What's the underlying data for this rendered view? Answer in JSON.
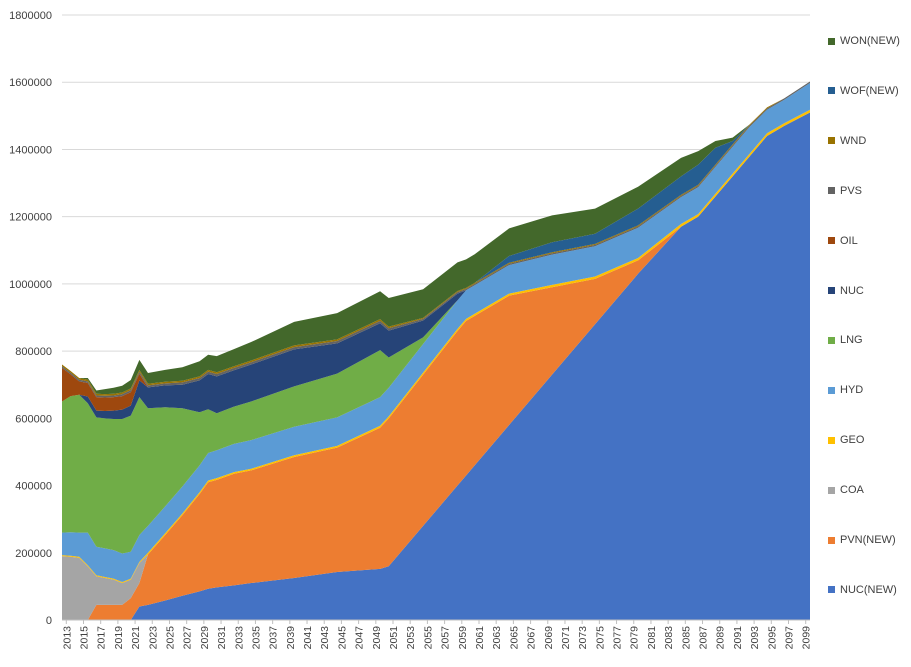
{
  "chart_data": {
    "type": "area",
    "stacked": true,
    "title": "",
    "xlabel": "",
    "ylabel": "",
    "ylim": [
      0,
      1800000
    ],
    "yticks": [
      0,
      200000,
      400000,
      600000,
      800000,
      1000000,
      1200000,
      1400000,
      1600000,
      1800000
    ],
    "x_tick_labels": [
      "2013",
      "2015",
      "2017",
      "2019",
      "2021",
      "2023",
      "2025",
      "2027",
      "2029",
      "2031",
      "2033",
      "2035",
      "2037",
      "2039",
      "2041",
      "2043",
      "2045",
      "2047",
      "2049",
      "2051",
      "2053",
      "2055",
      "2057",
      "2059",
      "2061",
      "2063",
      "2065",
      "2067",
      "2069",
      "2071",
      "2073",
      "2075",
      "2077",
      "2079",
      "2081",
      "2083",
      "2085",
      "2087",
      "2089",
      "2091",
      "2093",
      "2095",
      "2097",
      "2099"
    ],
    "x_first_year": 2013,
    "x_last_year": 2100,
    "grid": "horizontal",
    "legend_position": "right",
    "x": [
      2013,
      2014,
      2015,
      2016,
      2017,
      2018,
      2019,
      2020,
      2021,
      2022,
      2023,
      2025,
      2027,
      2029,
      2030,
      2031,
      2033,
      2035,
      2040,
      2045,
      2050,
      2051,
      2055,
      2059,
      2060,
      2061,
      2065,
      2070,
      2075,
      2080,
      2085,
      2087,
      2089,
      2091,
      2093,
      2095,
      2097,
      2100
    ],
    "series": [
      {
        "name": "NUC(NEW)",
        "color": "#4472c4",
        "values": [
          0,
          0,
          0,
          0,
          0,
          0,
          0,
          0,
          0,
          40000,
          45000,
          58000,
          72000,
          85000,
          93000,
          97000,
          103000,
          110000,
          125000,
          143000,
          152000,
          160000,
          280000,
          400000,
          430000,
          460000,
          580000,
          730000,
          880000,
          1030000,
          1170000,
          1200000,
          1260000,
          1320000,
          1380000,
          1440000,
          1470000,
          1510000
        ]
      },
      {
        "name": "PVN(NEW)",
        "color": "#ed7d31",
        "values": [
          0,
          0,
          0,
          0,
          45000,
          45000,
          45000,
          45000,
          65000,
          70000,
          150000,
          195000,
          240000,
          290000,
          317000,
          320000,
          332000,
          335000,
          360000,
          370000,
          420000,
          440000,
          450000,
          460000,
          460000,
          445000,
          385000,
          260000,
          135000,
          40000,
          0,
          0,
          0,
          0,
          0,
          0,
          0,
          0
        ]
      },
      {
        "name": "COA",
        "color": "#a5a5a5",
        "values": [
          190000,
          188000,
          185000,
          160000,
          85000,
          80000,
          75000,
          65000,
          55000,
          60000,
          0,
          0,
          0,
          0,
          0,
          0,
          0,
          0,
          0,
          0,
          0,
          0,
          0,
          0,
          0,
          0,
          0,
          0,
          0,
          0,
          0,
          0,
          0,
          0,
          0,
          0,
          0,
          0
        ]
      },
      {
        "name": "GEO",
        "color": "#ffc000",
        "values": [
          3000,
          3000,
          3000,
          3000,
          3000,
          3000,
          3000,
          3000,
          3000,
          3000,
          5000,
          5000,
          5000,
          5000,
          5000,
          5000,
          5000,
          5000,
          5000,
          5000,
          6000,
          6000,
          6000,
          6000,
          6000,
          6000,
          6000,
          7000,
          7000,
          7000,
          8000,
          8000,
          8000,
          8000,
          8000,
          8000,
          8000,
          8000
        ]
      },
      {
        "name": "HYD",
        "color": "#5b9bd5",
        "values": [
          67000,
          70000,
          72000,
          97000,
          85000,
          85000,
          85000,
          85000,
          80000,
          80000,
          80000,
          80000,
          80000,
          80000,
          82000,
          83000,
          84000,
          85000,
          85000,
          85000,
          85000,
          85000,
          85000,
          85000,
          85000,
          85000,
          85000,
          90000,
          90000,
          90000,
          80000,
          80000,
          80000,
          80000,
          80000,
          70000,
          70000,
          80000
        ]
      },
      {
        "name": "LNG",
        "color": "#70ad47",
        "values": [
          390000,
          405000,
          410000,
          385000,
          385000,
          387000,
          390000,
          400000,
          405000,
          410000,
          350000,
          295000,
          233000,
          158000,
          130000,
          110000,
          111000,
          115000,
          120000,
          130000,
          140000,
          90000,
          20000,
          0,
          0,
          0,
          0,
          0,
          0,
          0,
          0,
          0,
          0,
          0,
          0,
          0,
          0,
          0
        ]
      },
      {
        "name": "NUC",
        "color": "#264478",
        "values": [
          0,
          0,
          0,
          20000,
          20000,
          22000,
          25000,
          28000,
          30000,
          50000,
          62000,
          65000,
          70000,
          95000,
          105000,
          110000,
          108000,
          110000,
          110000,
          90000,
          80000,
          80000,
          50000,
          20000,
          0,
          0,
          0,
          0,
          0,
          0,
          0,
          0,
          0,
          0,
          0,
          0,
          0,
          0
        ]
      },
      {
        "name": "OIL",
        "color": "#9e480e",
        "values": [
          100000,
          65000,
          40000,
          40000,
          40000,
          40000,
          40000,
          40000,
          40000,
          20000,
          0,
          0,
          0,
          0,
          0,
          0,
          0,
          0,
          0,
          0,
          0,
          0,
          0,
          0,
          0,
          0,
          0,
          0,
          0,
          0,
          0,
          0,
          0,
          0,
          0,
          0,
          0,
          0
        ]
      },
      {
        "name": "PVS",
        "color": "#636363",
        "values": [
          5000,
          5000,
          5000,
          5000,
          5000,
          5000,
          5000,
          6000,
          6000,
          6000,
          6000,
          6000,
          7000,
          7000,
          7000,
          7000,
          7000,
          7000,
          7000,
          7000,
          7000,
          7000,
          5000,
          5000,
          4000,
          4000,
          4000,
          4000,
          4000,
          4000,
          4000,
          4000,
          4000,
          4000,
          4000,
          4000,
          4000,
          4000
        ]
      },
      {
        "name": "WND",
        "color": "#997300",
        "values": [
          5000,
          5000,
          5000,
          5000,
          5000,
          5000,
          5000,
          5000,
          5000,
          5000,
          5000,
          5000,
          5000,
          5000,
          5000,
          5000,
          5000,
          5000,
          5000,
          5000,
          5000,
          5000,
          3000,
          3000,
          3000,
          3000,
          3000,
          3000,
          3000,
          3000,
          3000,
          3000,
          3000,
          3000,
          3000,
          3000,
          0,
          0
        ]
      },
      {
        "name": "WOF(NEW)",
        "color": "#255e91",
        "values": [
          0,
          0,
          0,
          0,
          0,
          0,
          0,
          0,
          0,
          0,
          0,
          0,
          0,
          0,
          0,
          0,
          0,
          0,
          0,
          0,
          0,
          0,
          0,
          0,
          0,
          0,
          20000,
          30000,
          30000,
          50000,
          55000,
          60000,
          50000,
          10000,
          0,
          0,
          0,
          0
        ]
      },
      {
        "name": "WON(NEW)",
        "color": "#43682b",
        "values": [
          0,
          0,
          0,
          5000,
          10000,
          15000,
          18000,
          20000,
          25000,
          30000,
          32000,
          35000,
          40000,
          45000,
          45000,
          48000,
          51000,
          55000,
          70000,
          78000,
          83000,
          85000,
          85000,
          85000,
          85000,
          85000,
          82000,
          80000,
          75000,
          65000,
          55000,
          40000,
          20000,
          10000,
          0,
          0,
          0,
          0
        ]
      }
    ]
  }
}
